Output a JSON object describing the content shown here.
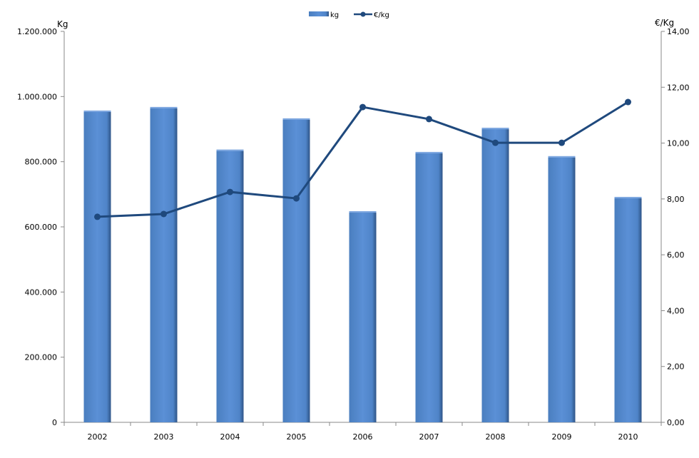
{
  "chart_data": {
    "type": "bar+line",
    "categories": [
      "2002",
      "2003",
      "2004",
      "2005",
      "2006",
      "2007",
      "2008",
      "2009",
      "2010"
    ],
    "series": [
      {
        "name": "kg",
        "type": "bar",
        "axis": "left",
        "color": "#558ED5",
        "values": [
          957000,
          968000,
          837000,
          933000,
          648000,
          830000,
          904000,
          817000,
          692000
        ]
      },
      {
        "name": "€/kg",
        "type": "line",
        "axis": "right",
        "color": "#1F497D",
        "values": [
          7.36,
          7.46,
          8.25,
          8.02,
          11.29,
          10.86,
          10.01,
          10.01,
          11.47
        ]
      }
    ],
    "ylabel": "Kg",
    "y2label": "€/Kg",
    "ylim": [
      0,
      1200000
    ],
    "y2lim": [
      0,
      14
    ],
    "yticks": [
      "0",
      "200.000",
      "400.000",
      "600.000",
      "800.000",
      "1.000.000",
      "1.200.000"
    ],
    "y2ticks": [
      "0,00",
      "2,00",
      "4,00",
      "6,00",
      "8,00",
      "10,00",
      "12,00",
      "14,00"
    ],
    "grid": false,
    "legend": "top-center"
  }
}
